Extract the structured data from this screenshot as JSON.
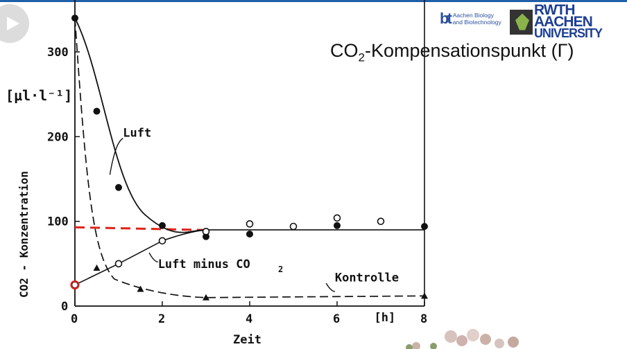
{
  "slide": {
    "title_main": "CO",
    "title_sub": "2",
    "title_rest": "-Kompensationspunkt (Γ)",
    "logo_bt_mark": "bt",
    "logo_bt_line1": "Aachen Biology",
    "logo_bt_line2": "and Biotechnology",
    "logo_rwth_line1": "RWTH AACHEN",
    "logo_rwth_line2": "UNIVERSITY"
  },
  "chart_data": {
    "type": "line",
    "ylabel": "CO2 - Konzentration",
    "yunit": "[µl·l⁻¹]",
    "xlabel": "Zeit",
    "xunit": "[h]",
    "xlim": [
      0,
      8
    ],
    "ylim": [
      0,
      350
    ],
    "xticks": [
      0,
      2,
      4,
      6,
      8
    ],
    "yticks": [
      0,
      100,
      200,
      300
    ],
    "series": [
      {
        "name": "Luft",
        "marker": "filled-circle",
        "line": "solid",
        "points": [
          [
            0,
            340
          ],
          [
            0.5,
            230
          ],
          [
            1,
            140
          ],
          [
            2,
            95
          ],
          [
            3,
            82
          ],
          [
            4,
            85
          ],
          [
            6,
            95
          ],
          [
            8,
            94
          ]
        ]
      },
      {
        "name": "Luft minus CO2",
        "marker": "open-circle",
        "line": "solid",
        "points": [
          [
            0,
            25
          ],
          [
            1,
            50
          ],
          [
            2,
            77
          ],
          [
            3,
            88
          ],
          [
            4,
            97
          ],
          [
            5,
            94
          ],
          [
            6,
            104
          ],
          [
            7,
            100
          ]
        ]
      },
      {
        "name": "Kontrolle",
        "marker": "filled-triangle",
        "line": "dashed",
        "points": [
          [
            0.5,
            45
          ],
          [
            1.5,
            20
          ],
          [
            3,
            10
          ],
          [
            8,
            12
          ]
        ]
      }
    ],
    "annotation": {
      "type": "dashed-line",
      "color": "#e0221a",
      "y": 93,
      "x_range": [
        0,
        3
      ]
    },
    "highlight_point": {
      "x": 0,
      "y": 25,
      "color": "#e0221a"
    }
  }
}
